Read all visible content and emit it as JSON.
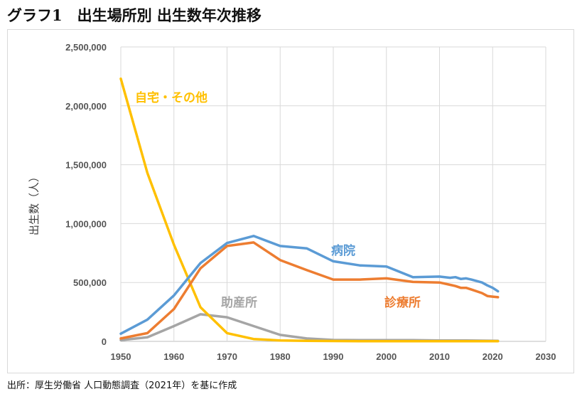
{
  "title": "グラフ1　出生場所別 出生数年次推移",
  "source": "出所：厚生労働省 人口動態調査（2021年）を基に作成",
  "chart_data": {
    "type": "line",
    "title": "グラフ1　出生場所別 出生数年次推移",
    "xlabel": "",
    "ylabel": "出生数（人）",
    "xlim": [
      1950,
      2030
    ],
    "ylim": [
      0,
      2500000
    ],
    "xticks": [
      1950,
      1960,
      1970,
      1980,
      1990,
      2000,
      2010,
      2020,
      2030
    ],
    "xtick_labels": [
      "1950",
      "1960",
      "1970",
      "1980",
      "1990",
      "2000",
      "2010",
      "2020",
      "2030"
    ],
    "yticks": [
      0,
      500000,
      1000000,
      1500000,
      2000000,
      2500000
    ],
    "ytick_labels": [
      "0",
      "500,000",
      "1,000,000",
      "1,500,000",
      "2,000,000",
      "2,500,000"
    ],
    "grid": true,
    "series": [
      {
        "name": "病院",
        "color": "#5b9bd5",
        "x": [
          1950,
          1955,
          1960,
          1965,
          1970,
          1975,
          1980,
          1985,
          1990,
          1995,
          2000,
          2005,
          2010,
          2012,
          2013,
          2014,
          2015,
          2016,
          2018,
          2019,
          2020,
          2021
        ],
        "y": [
          65000,
          185000,
          390000,
          665000,
          835000,
          895000,
          810000,
          790000,
          680000,
          645000,
          635000,
          545000,
          550000,
          540000,
          545000,
          530000,
          535000,
          525000,
          500000,
          475000,
          455000,
          425000
        ]
      },
      {
        "name": "診療所",
        "color": "#ed7d31",
        "x": [
          1950,
          1955,
          1960,
          1965,
          1970,
          1975,
          1980,
          1985,
          1990,
          1995,
          2000,
          2005,
          2010,
          2012,
          2013,
          2014,
          2015,
          2016,
          2018,
          2019,
          2020,
          2021
        ],
        "y": [
          25000,
          70000,
          275000,
          620000,
          810000,
          840000,
          690000,
          605000,
          525000,
          525000,
          535000,
          505000,
          500000,
          480000,
          470000,
          455000,
          455000,
          440000,
          410000,
          385000,
          380000,
          375000
        ]
      },
      {
        "name": "助産所",
        "color": "#a5a5a5",
        "x": [
          1950,
          1955,
          1960,
          1965,
          1970,
          1975,
          1980,
          1985,
          1990,
          1995,
          2000,
          2005,
          2010,
          2015,
          2021
        ],
        "y": [
          10000,
          35000,
          130000,
          230000,
          205000,
          130000,
          55000,
          25000,
          12000,
          10000,
          10000,
          10000,
          8000,
          7000,
          5000
        ]
      },
      {
        "name": "自宅・その他",
        "color": "#ffc000",
        "x": [
          1950,
          1955,
          1960,
          1965,
          1970,
          1975,
          1980,
          1985,
          1990,
          1995,
          2000,
          2005,
          2010,
          2015,
          2021
        ],
        "y": [
          2230000,
          1430000,
          820000,
          290000,
          70000,
          20000,
          8000,
          5000,
          3000,
          2000,
          2000,
          2000,
          1500,
          1500,
          1000
        ]
      }
    ]
  }
}
